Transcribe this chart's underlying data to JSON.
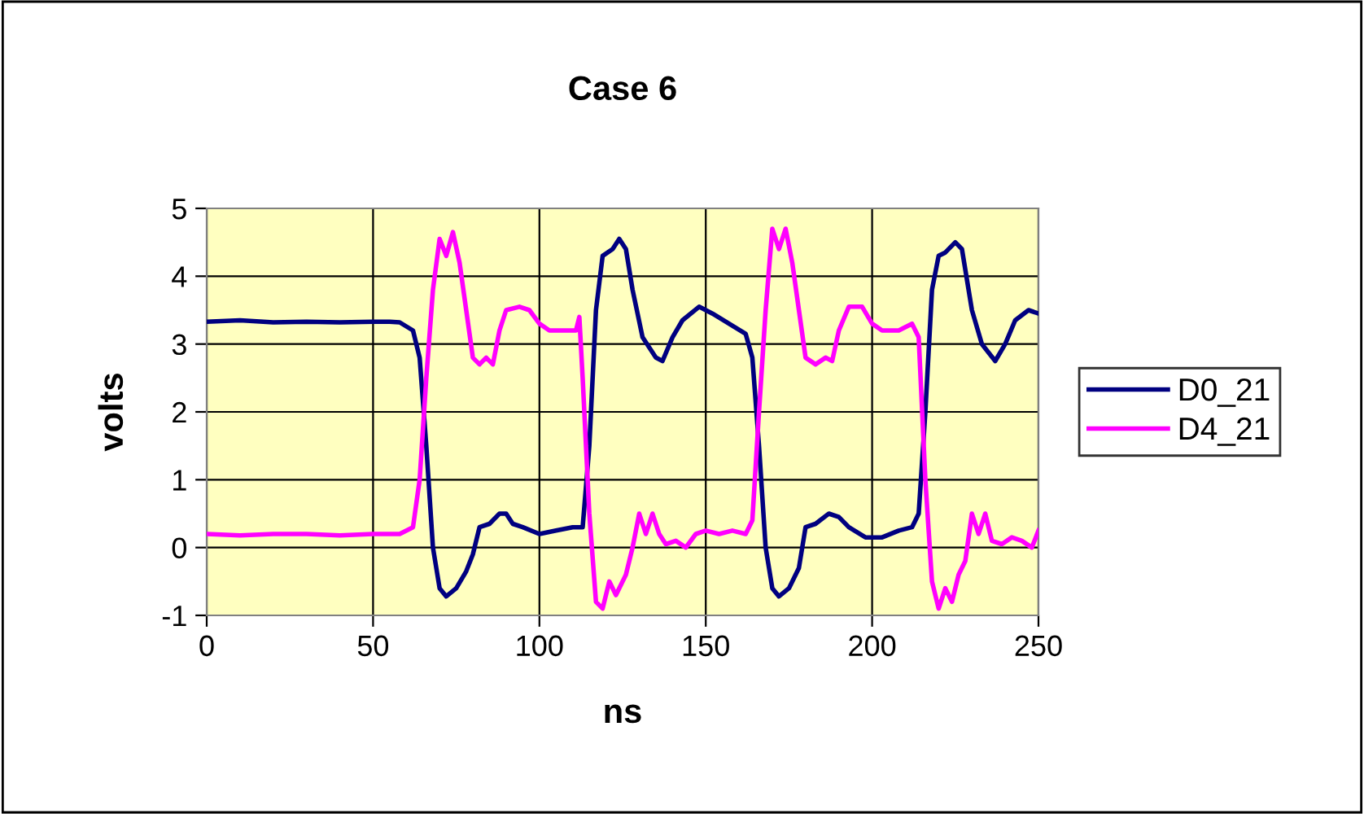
{
  "chart_data": {
    "type": "line",
    "title": "Case 6",
    "xlabel": "ns",
    "ylabel": "volts",
    "xlim": [
      0,
      250
    ],
    "xticks": [
      0,
      50,
      100,
      150,
      200,
      250
    ],
    "ylim": [
      -1,
      5
    ],
    "yticks": [
      -1,
      0,
      1,
      2,
      3,
      4,
      5
    ],
    "grid": true,
    "legend": "right",
    "marker": "none",
    "line_style": "solid",
    "series": [
      {
        "name": "D0_21",
        "color": "#000080",
        "x": [
          0,
          10,
          20,
          30,
          40,
          50,
          55,
          58,
          62,
          64,
          66,
          68,
          70,
          72,
          75,
          78,
          80,
          82,
          85,
          88,
          90,
          92,
          95,
          100,
          105,
          110,
          113,
          115,
          117,
          119,
          122,
          124,
          126,
          128,
          131,
          135,
          137,
          140,
          143,
          148,
          152,
          157,
          162,
          164,
          166,
          168,
          170,
          172,
          175,
          178,
          180,
          183,
          187,
          190,
          193,
          198,
          203,
          208,
          212,
          214,
          216,
          218,
          220,
          222,
          225,
          227,
          230,
          233,
          237,
          240,
          243,
          247,
          250
        ],
        "values": [
          3.33,
          3.35,
          3.32,
          3.33,
          3.32,
          3.33,
          3.33,
          3.32,
          3.2,
          2.8,
          1.5,
          0,
          -0.6,
          -0.72,
          -0.6,
          -0.35,
          -0.1,
          0.3,
          0.35,
          0.5,
          0.5,
          0.35,
          0.3,
          0.2,
          0.25,
          0.3,
          0.3,
          1.5,
          3.5,
          4.3,
          4.4,
          4.55,
          4.4,
          3.8,
          3.1,
          2.8,
          2.75,
          3.1,
          3.35,
          3.55,
          3.45,
          3.3,
          3.15,
          2.8,
          1.5,
          0,
          -0.6,
          -0.72,
          -0.6,
          -0.3,
          0.3,
          0.35,
          0.5,
          0.45,
          0.3,
          0.15,
          0.15,
          0.25,
          0.3,
          0.5,
          2.0,
          3.8,
          4.3,
          4.35,
          4.5,
          4.4,
          3.5,
          3.0,
          2.75,
          3.0,
          3.35,
          3.5,
          3.45
        ]
      },
      {
        "name": "D4_21",
        "color": "#ff00ff",
        "x": [
          0,
          10,
          20,
          30,
          40,
          50,
          58,
          62,
          64,
          66,
          68,
          70,
          72,
          74,
          76,
          78,
          80,
          82,
          84,
          86,
          88,
          90,
          94,
          97,
          100,
          103,
          108,
          111,
          112,
          113,
          115,
          117,
          119,
          121,
          123,
          126,
          128,
          130,
          132,
          134,
          136,
          138,
          141,
          144,
          147,
          150,
          154,
          158,
          162,
          164,
          166,
          168,
          170,
          172,
          174,
          176,
          178,
          180,
          183,
          186,
          188,
          190,
          193,
          197,
          200,
          203,
          208,
          212,
          214,
          216,
          218,
          220,
          222,
          224,
          226,
          228,
          230,
          232,
          234,
          236,
          239,
          242,
          245,
          248,
          250
        ],
        "values": [
          0.2,
          0.18,
          0.2,
          0.2,
          0.18,
          0.2,
          0.2,
          0.3,
          1.0,
          2.5,
          3.8,
          4.55,
          4.3,
          4.65,
          4.2,
          3.5,
          2.8,
          2.7,
          2.8,
          2.7,
          3.2,
          3.5,
          3.55,
          3.5,
          3.3,
          3.2,
          3.2,
          3.2,
          3.4,
          2.5,
          0.5,
          -0.8,
          -0.9,
          -0.5,
          -0.7,
          -0.4,
          0,
          0.5,
          0.2,
          0.5,
          0.2,
          0.05,
          0.1,
          0.0,
          0.2,
          0.25,
          0.2,
          0.25,
          0.2,
          0.4,
          2.0,
          3.5,
          4.7,
          4.4,
          4.7,
          4.2,
          3.5,
          2.8,
          2.7,
          2.8,
          2.75,
          3.2,
          3.55,
          3.55,
          3.3,
          3.2,
          3.2,
          3.3,
          3.1,
          1.0,
          -0.5,
          -0.9,
          -0.6,
          -0.8,
          -0.4,
          -0.2,
          0.5,
          0.2,
          0.5,
          0.1,
          0.05,
          0.15,
          0.1,
          0.0,
          0.25
        ]
      }
    ]
  }
}
